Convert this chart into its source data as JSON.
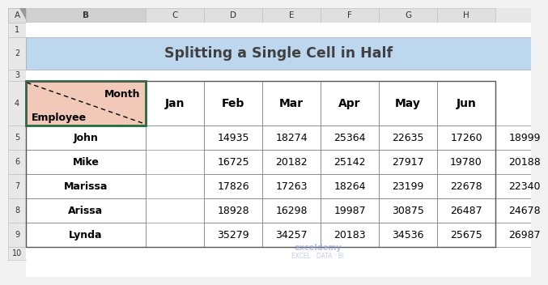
{
  "title": "Splitting a Single Cell in Half",
  "title_bg": "#BDD7EE",
  "col_headers": [
    "Jan",
    "Feb",
    "Mar",
    "Apr",
    "May",
    "Jun"
  ],
  "row_headers": [
    "John",
    "Mike",
    "Marissa",
    "Arissa",
    "Lynda"
  ],
  "data": [
    [
      14935,
      18274,
      25364,
      22635,
      17260,
      18999
    ],
    [
      16725,
      20182,
      25142,
      27917,
      19780,
      20188
    ],
    [
      17826,
      17263,
      18264,
      23199,
      22678,
      22340
    ],
    [
      18928,
      16298,
      19987,
      30875,
      26487,
      24678
    ],
    [
      35279,
      34257,
      20183,
      34536,
      25675,
      26987
    ]
  ],
  "excel_col_labels": [
    "A",
    "B",
    "C",
    "D",
    "E",
    "F",
    "G",
    "H"
  ],
  "excel_row_labels": [
    "1",
    "2",
    "3",
    "4",
    "5",
    "6",
    "7",
    "8",
    "9",
    "10"
  ],
  "split_cell_label_left": "Employee",
  "split_cell_label_right": "Month",
  "header_border_color": "#1F6E3A",
  "split_cell_bg": "#F2C8B8",
  "watermark_line1": "exceldemy",
  "watermark_line2": "EXCEL · DATA · BI"
}
